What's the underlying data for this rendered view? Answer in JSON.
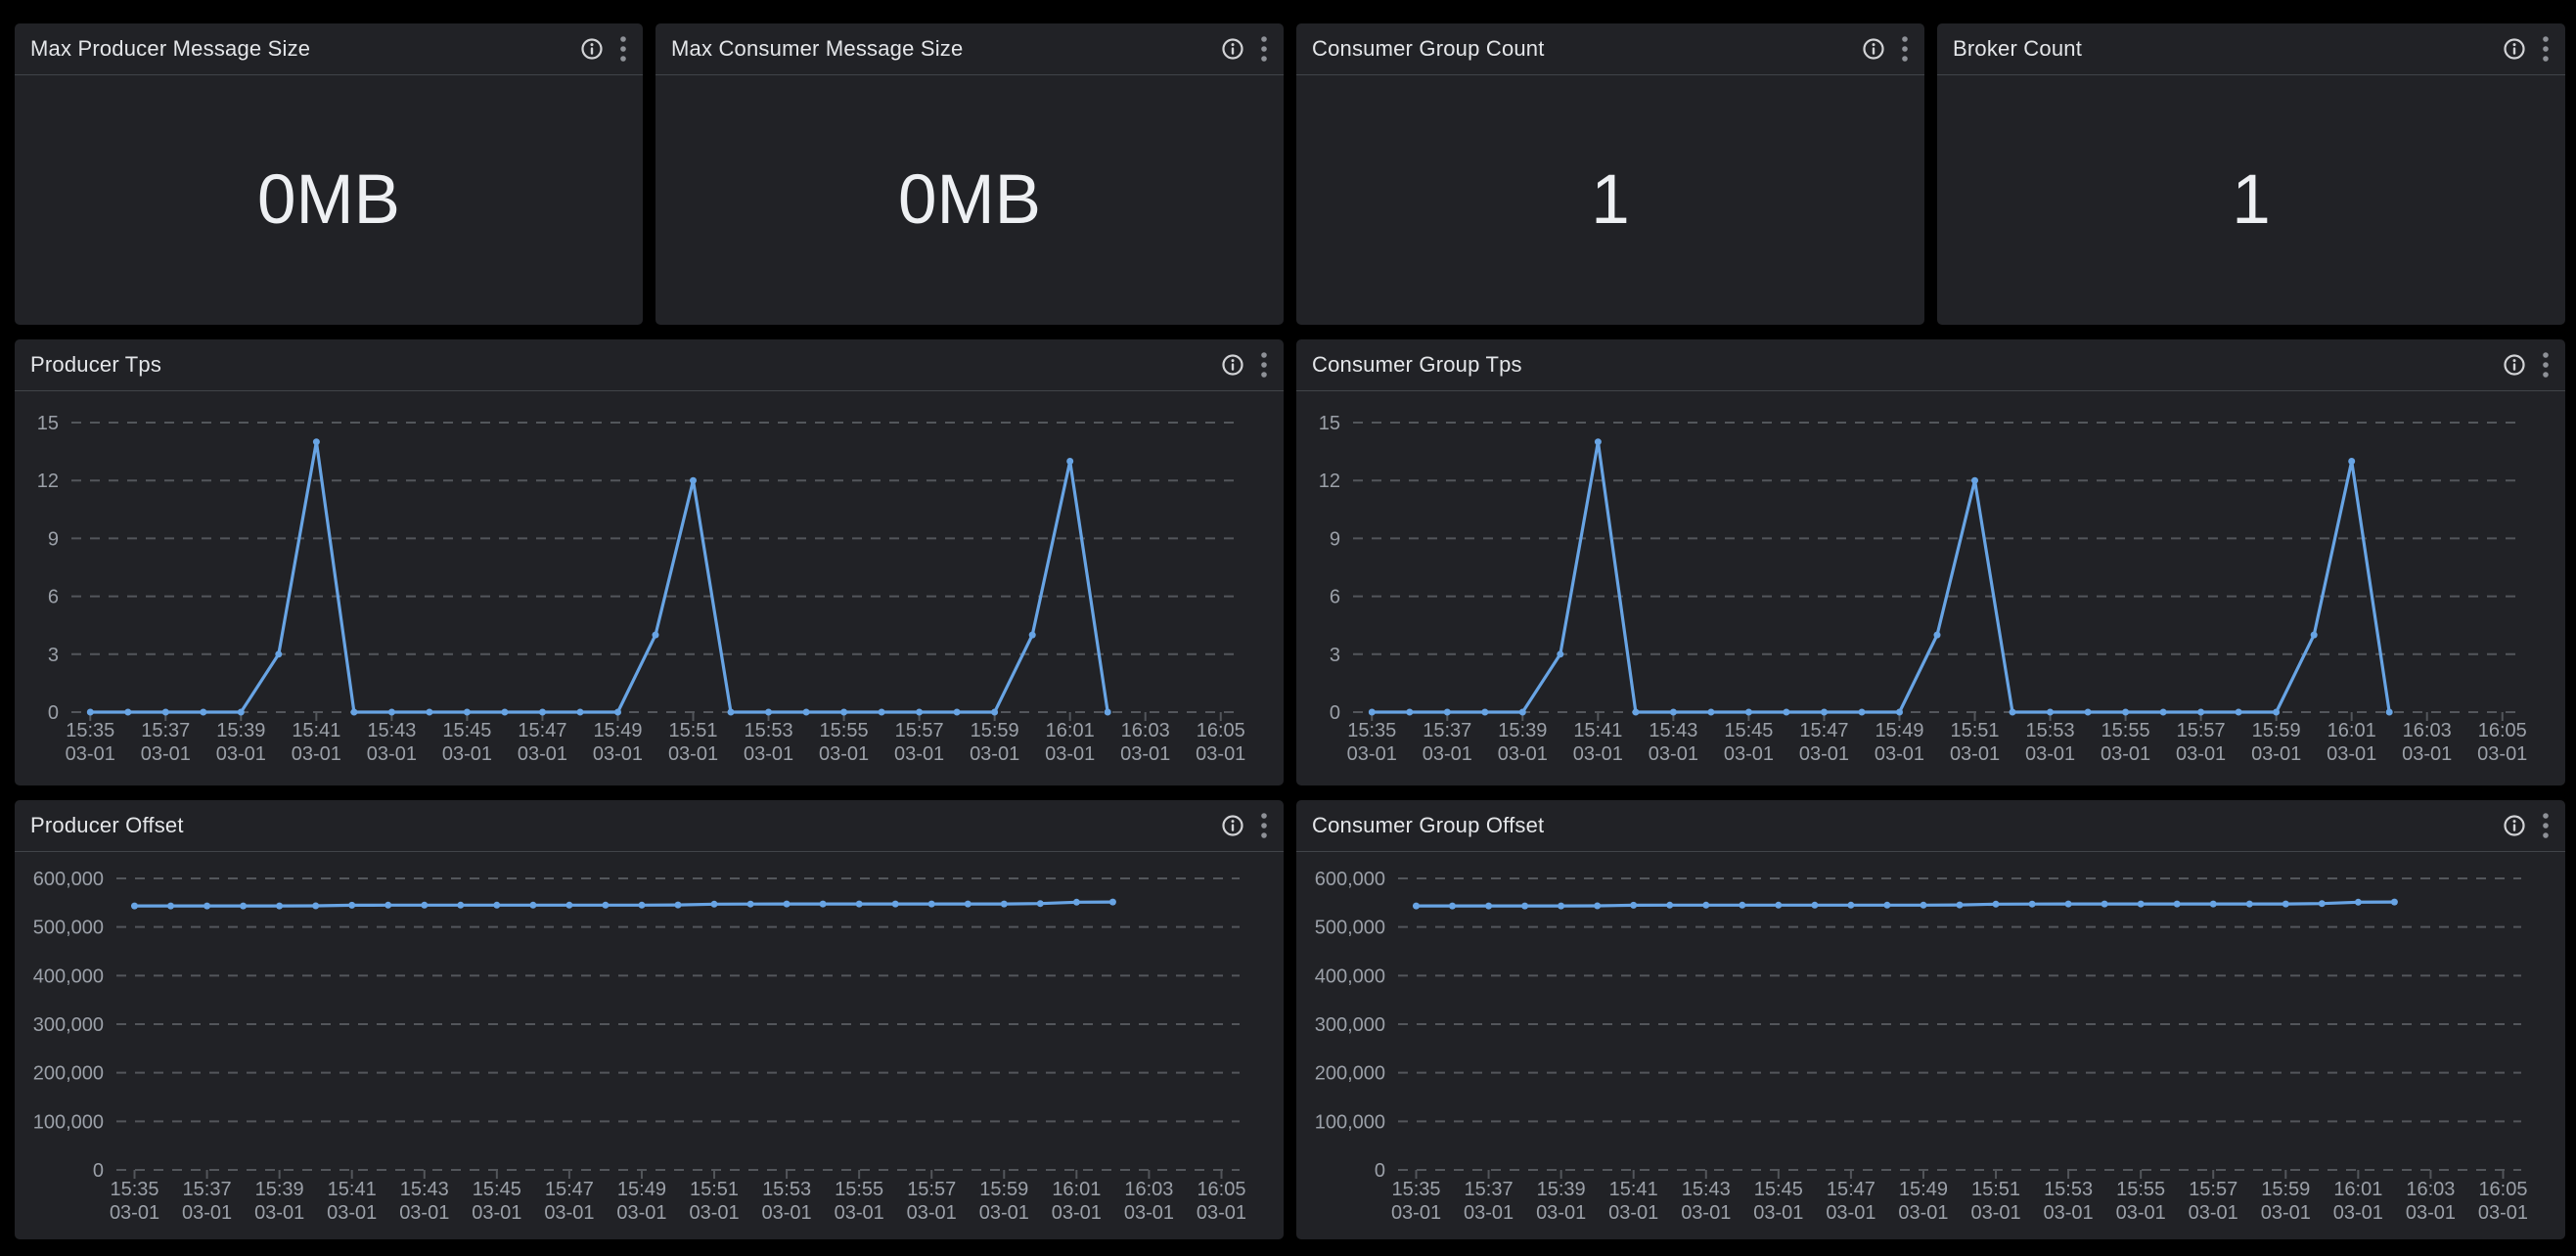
{
  "stats": [
    {
      "title": "Max Producer Message Size",
      "value": "0MB"
    },
    {
      "title": "Max Consumer Message Size",
      "value": "0MB"
    },
    {
      "title": "Consumer Group Count",
      "value": "1"
    },
    {
      "title": "Broker Count",
      "value": "1"
    }
  ],
  "panel_actions": {
    "info_icon": "info",
    "menu_icon": "kebab-menu"
  },
  "colors": {
    "page_bg": "#000000",
    "panel_bg": "#212226",
    "divider": "#414449",
    "grid": "#53565b",
    "axis_label": "#9ba0a8",
    "title": "#e4e6e9",
    "stat_value": "#eef0f3",
    "line": "#68a4e4",
    "info_icon": "#d2d3d6",
    "kebab_icon": "#8e9197"
  },
  "chart_data": [
    {
      "panel": "producer-tps",
      "title": "Producer Tps",
      "type": "line",
      "line_color": "#68a4e4",
      "grid": true,
      "legend": "none",
      "ylim": [
        0,
        15
      ],
      "yticks": [
        0,
        3,
        6,
        9,
        12,
        15
      ],
      "ytick_labels": [
        "0",
        "3",
        "6",
        "9",
        "12",
        "15"
      ],
      "x": [
        "15:35",
        "15:36",
        "15:37",
        "15:38",
        "15:39",
        "15:40",
        "15:41",
        "15:42",
        "15:43",
        "15:44",
        "15:45",
        "15:46",
        "15:47",
        "15:48",
        "15:49",
        "15:50",
        "15:51",
        "15:52",
        "15:53",
        "15:54",
        "15:55",
        "15:56",
        "15:57",
        "15:58",
        "15:59",
        "16:00",
        "16:01",
        "16:02"
      ],
      "values": [
        0,
        0,
        0,
        0,
        0,
        3,
        14,
        0,
        0,
        0,
        0,
        0,
        0,
        0,
        0,
        4,
        12,
        0,
        0,
        0,
        0,
        0,
        0,
        0,
        0,
        4,
        13,
        0
      ],
      "x_axis_slots": 31,
      "xticks": [
        {
          "time": "15:35",
          "date": "03-01"
        },
        {
          "time": "15:37",
          "date": "03-01"
        },
        {
          "time": "15:39",
          "date": "03-01"
        },
        {
          "time": "15:41",
          "date": "03-01"
        },
        {
          "time": "15:43",
          "date": "03-01"
        },
        {
          "time": "15:45",
          "date": "03-01"
        },
        {
          "time": "15:47",
          "date": "03-01"
        },
        {
          "time": "15:49",
          "date": "03-01"
        },
        {
          "time": "15:51",
          "date": "03-01"
        },
        {
          "time": "15:53",
          "date": "03-01"
        },
        {
          "time": "15:55",
          "date": "03-01"
        },
        {
          "time": "15:57",
          "date": "03-01"
        },
        {
          "time": "15:59",
          "date": "03-01"
        },
        {
          "time": "16:01",
          "date": "03-01"
        },
        {
          "time": "16:03",
          "date": "03-01"
        },
        {
          "time": "16:05",
          "date": "03-01"
        }
      ]
    },
    {
      "panel": "consumer-group-tps",
      "title": "Consumer Group Tps",
      "type": "line",
      "line_color": "#68a4e4",
      "grid": true,
      "legend": "none",
      "ylim": [
        0,
        15
      ],
      "yticks": [
        0,
        3,
        6,
        9,
        12,
        15
      ],
      "ytick_labels": [
        "0",
        "3",
        "6",
        "9",
        "12",
        "15"
      ],
      "x": [
        "15:35",
        "15:36",
        "15:37",
        "15:38",
        "15:39",
        "15:40",
        "15:41",
        "15:42",
        "15:43",
        "15:44",
        "15:45",
        "15:46",
        "15:47",
        "15:48",
        "15:49",
        "15:50",
        "15:51",
        "15:52",
        "15:53",
        "15:54",
        "15:55",
        "15:56",
        "15:57",
        "15:58",
        "15:59",
        "16:00",
        "16:01",
        "16:02"
      ],
      "values": [
        0,
        0,
        0,
        0,
        0,
        3,
        14,
        0,
        0,
        0,
        0,
        0,
        0,
        0,
        0,
        4,
        12,
        0,
        0,
        0,
        0,
        0,
        0,
        0,
        0,
        4,
        13,
        0
      ],
      "x_axis_slots": 31,
      "xticks": [
        {
          "time": "15:35",
          "date": "03-01"
        },
        {
          "time": "15:37",
          "date": "03-01"
        },
        {
          "time": "15:39",
          "date": "03-01"
        },
        {
          "time": "15:41",
          "date": "03-01"
        },
        {
          "time": "15:43",
          "date": "03-01"
        },
        {
          "time": "15:45",
          "date": "03-01"
        },
        {
          "time": "15:47",
          "date": "03-01"
        },
        {
          "time": "15:49",
          "date": "03-01"
        },
        {
          "time": "15:51",
          "date": "03-01"
        },
        {
          "time": "15:53",
          "date": "03-01"
        },
        {
          "time": "15:55",
          "date": "03-01"
        },
        {
          "time": "15:57",
          "date": "03-01"
        },
        {
          "time": "15:59",
          "date": "03-01"
        },
        {
          "time": "16:01",
          "date": "03-01"
        },
        {
          "time": "16:03",
          "date": "03-01"
        },
        {
          "time": "16:05",
          "date": "03-01"
        }
      ]
    },
    {
      "panel": "producer-offset",
      "title": "Producer Offset",
      "type": "line",
      "line_color": "#68a4e4",
      "grid": true,
      "legend": "none",
      "ylim": [
        0,
        600000
      ],
      "yticks": [
        0,
        100000,
        200000,
        300000,
        400000,
        500000,
        600000
      ],
      "ytick_labels": [
        "0",
        "100,000",
        "200,000",
        "300,000",
        "400,000",
        "500,000",
        "600,000"
      ],
      "x": [
        "15:35",
        "15:36",
        "15:37",
        "15:38",
        "15:39",
        "15:40",
        "15:41",
        "15:42",
        "15:43",
        "15:44",
        "15:45",
        "15:46",
        "15:47",
        "15:48",
        "15:49",
        "15:50",
        "15:51",
        "15:52",
        "15:53",
        "15:54",
        "15:55",
        "15:56",
        "15:57",
        "15:58",
        "15:59",
        "16:00",
        "16:01",
        "16:02"
      ],
      "values": [
        543500,
        543500,
        543500,
        543500,
        543500,
        543700,
        544800,
        545000,
        545000,
        545000,
        545000,
        545000,
        545000,
        545000,
        545000,
        545500,
        547000,
        547300,
        547500,
        547500,
        547500,
        547500,
        547500,
        547500,
        547500,
        548200,
        551000,
        551500
      ],
      "x_axis_slots": 31,
      "xticks": [
        {
          "time": "15:35",
          "date": "03-01"
        },
        {
          "time": "15:37",
          "date": "03-01"
        },
        {
          "time": "15:39",
          "date": "03-01"
        },
        {
          "time": "15:41",
          "date": "03-01"
        },
        {
          "time": "15:43",
          "date": "03-01"
        },
        {
          "time": "15:45",
          "date": "03-01"
        },
        {
          "time": "15:47",
          "date": "03-01"
        },
        {
          "time": "15:49",
          "date": "03-01"
        },
        {
          "time": "15:51",
          "date": "03-01"
        },
        {
          "time": "15:53",
          "date": "03-01"
        },
        {
          "time": "15:55",
          "date": "03-01"
        },
        {
          "time": "15:57",
          "date": "03-01"
        },
        {
          "time": "15:59",
          "date": "03-01"
        },
        {
          "time": "16:01",
          "date": "03-01"
        },
        {
          "time": "16:03",
          "date": "03-01"
        },
        {
          "time": "16:05",
          "date": "03-01"
        }
      ]
    },
    {
      "panel": "consumer-group-offset",
      "title": "Consumer Group Offset",
      "type": "line",
      "line_color": "#68a4e4",
      "grid": true,
      "legend": "none",
      "ylim": [
        0,
        600000
      ],
      "yticks": [
        0,
        100000,
        200000,
        300000,
        400000,
        500000,
        600000
      ],
      "ytick_labels": [
        "0",
        "100,000",
        "200,000",
        "300,000",
        "400,000",
        "500,000",
        "600,000"
      ],
      "x": [
        "15:35",
        "15:36",
        "15:37",
        "15:38",
        "15:39",
        "15:40",
        "15:41",
        "15:42",
        "15:43",
        "15:44",
        "15:45",
        "15:46",
        "15:47",
        "15:48",
        "15:49",
        "15:50",
        "15:51",
        "15:52",
        "15:53",
        "15:54",
        "15:55",
        "15:56",
        "15:57",
        "15:58",
        "15:59",
        "16:00",
        "16:01",
        "16:02"
      ],
      "values": [
        543500,
        543500,
        543500,
        543500,
        543500,
        543700,
        544800,
        545000,
        545000,
        545000,
        545000,
        545000,
        545000,
        545000,
        545000,
        545500,
        547000,
        547300,
        547500,
        547500,
        547500,
        547500,
        547500,
        547500,
        547500,
        548200,
        551000,
        551500
      ],
      "x_axis_slots": 31,
      "xticks": [
        {
          "time": "15:35",
          "date": "03-01"
        },
        {
          "time": "15:37",
          "date": "03-01"
        },
        {
          "time": "15:39",
          "date": "03-01"
        },
        {
          "time": "15:41",
          "date": "03-01"
        },
        {
          "time": "15:43",
          "date": "03-01"
        },
        {
          "time": "15:45",
          "date": "03-01"
        },
        {
          "time": "15:47",
          "date": "03-01"
        },
        {
          "time": "15:49",
          "date": "03-01"
        },
        {
          "time": "15:51",
          "date": "03-01"
        },
        {
          "time": "15:53",
          "date": "03-01"
        },
        {
          "time": "15:55",
          "date": "03-01"
        },
        {
          "time": "15:57",
          "date": "03-01"
        },
        {
          "time": "15:59",
          "date": "03-01"
        },
        {
          "time": "16:01",
          "date": "03-01"
        },
        {
          "time": "16:03",
          "date": "03-01"
        },
        {
          "time": "16:05",
          "date": "03-01"
        }
      ]
    }
  ]
}
